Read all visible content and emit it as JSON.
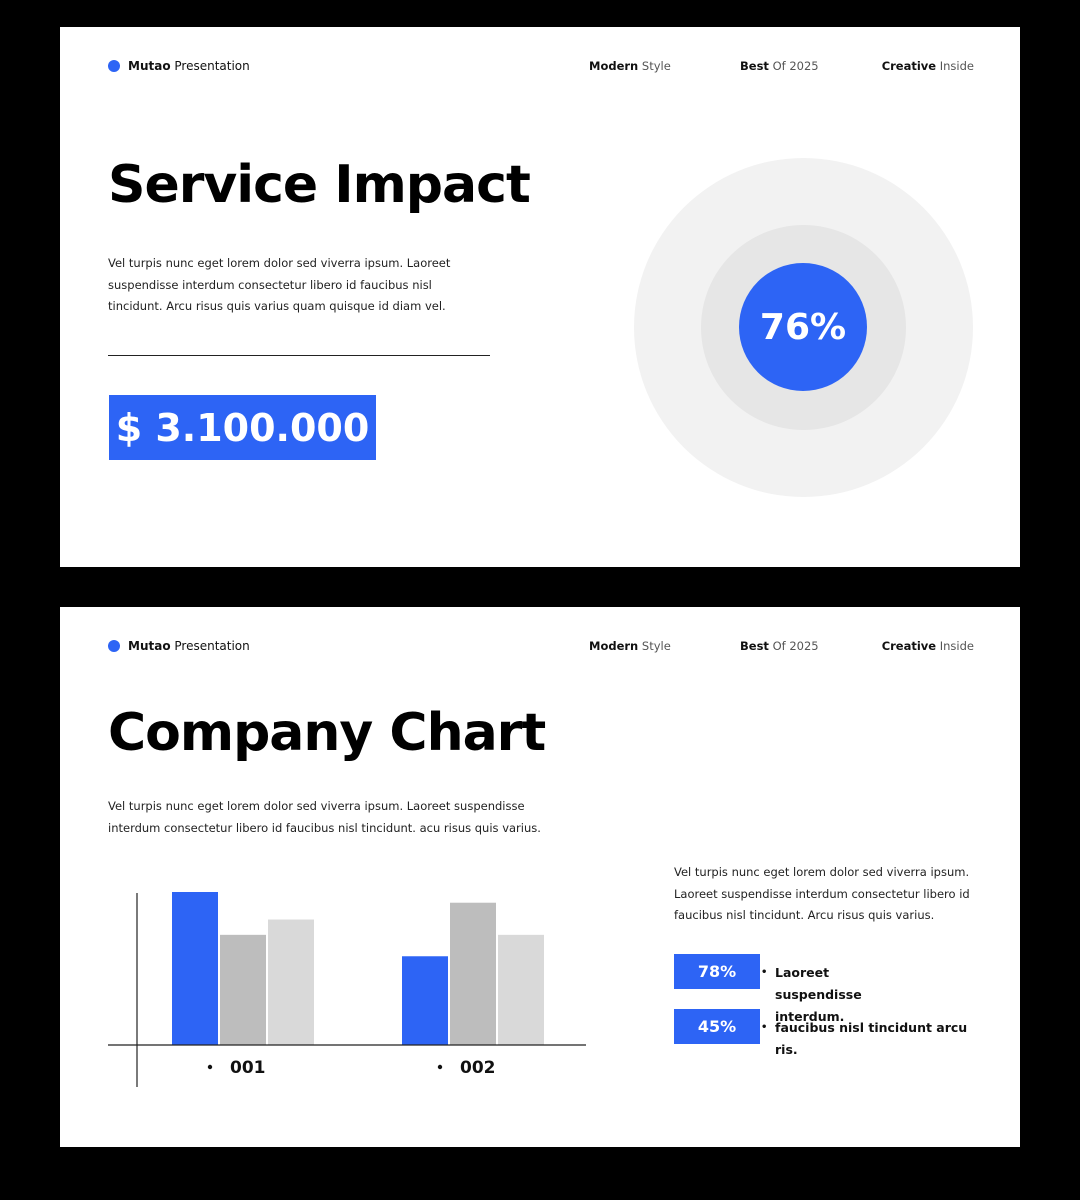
{
  "colors": {
    "accent": "#2d64f5",
    "gray": "#bdbdbd",
    "light_gray": "#d9d9d9",
    "ring_outer": "#f2f2f2",
    "ring_middle": "#e6e6e6"
  },
  "header": {
    "brand_bold": "Mutao",
    "brand_rest": "Presentation",
    "nav": [
      {
        "bold": "Modern",
        "rest": "Style"
      },
      {
        "bold": "Best",
        "rest": "Of 2025"
      },
      {
        "bold": "Creative",
        "rest": "Inside"
      }
    ]
  },
  "slide1": {
    "title": "Service Impact",
    "body": "Vel turpis nunc eget lorem dolor sed viverra ipsum. Laoreet suspendisse interdum consectetur libero id faucibus nisl tincidunt. Arcu risus quis varius quam quisque id diam vel.",
    "amount": "$ 3.100.000",
    "gauge_label": "76%",
    "gauge_value": 76
  },
  "slide2": {
    "title": "Company Chart",
    "body": "Vel turpis nunc eget lorem dolor sed viverra ipsum. Laoreet suspendisse interdum consectetur libero id faucibus nisl tincidunt. acu risus quis varius.",
    "side_text": "Vel turpis nunc eget lorem dolor sed viverra ipsum. Laoreet suspendisse interdum consectetur libero id faucibus nisl tincidunt. Arcu risus quis varius.",
    "stats": [
      {
        "value": "78%",
        "text": "Laoreet suspendisse interdum."
      },
      {
        "value": "45%",
        "text": "faucibus nisl tincidunt arcu ris."
      }
    ]
  },
  "chart_data": {
    "type": "bar",
    "categories": [
      "001",
      "002"
    ],
    "series": [
      {
        "values": [
          100,
          58
        ],
        "color": "#2d64f5"
      },
      {
        "values": [
          72,
          93
        ],
        "color": "#bdbdbd"
      },
      {
        "values": [
          82,
          72
        ],
        "color": "#d9d9d9"
      }
    ],
    "ylim": [
      0,
      100
    ],
    "grid": false
  }
}
